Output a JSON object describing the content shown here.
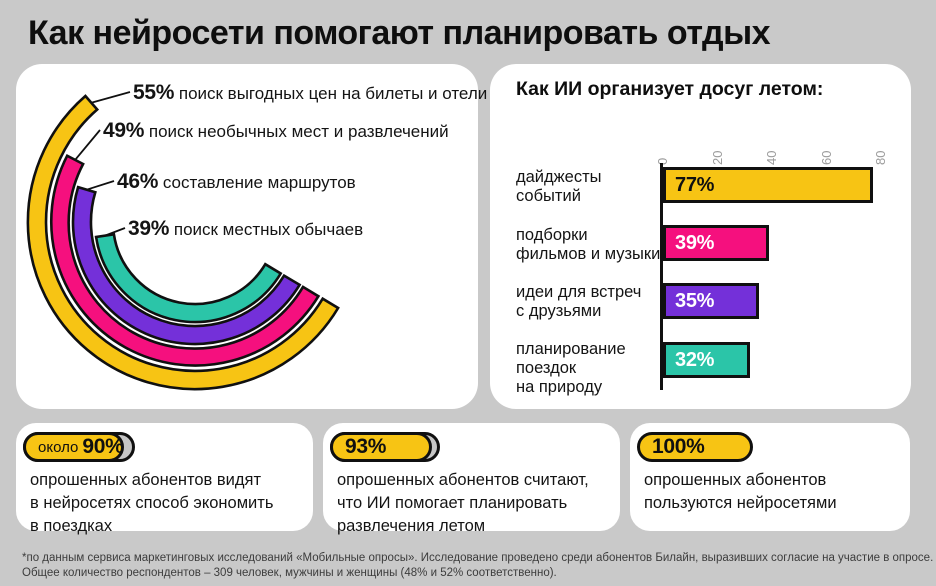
{
  "title": "Как нейросети помогают планировать отдых",
  "colors": {
    "yellow": "#F7C414",
    "pink": "#F5107E",
    "purple": "#7430D9",
    "teal": "#2BC5A8",
    "outline": "#101010",
    "pill_gray": "#C6C6C6",
    "background": "#C9C9C9",
    "tick_gray": "#9C9C9C"
  },
  "chart_data": [
    {
      "type": "radial_bar",
      "value_range": [
        0,
        100
      ],
      "items": [
        {
          "value": 55,
          "value_label": "55%",
          "label": "поиск выгодных цен на билеты и отели",
          "color": "yellow"
        },
        {
          "value": 49,
          "value_label": "49%",
          "label": "поиск необычных мест и развлечений",
          "color": "pink"
        },
        {
          "value": 46,
          "value_label": "46%",
          "label": "составление маршрутов",
          "color": "purple"
        },
        {
          "value": 39,
          "value_label": "39%",
          "label": "поиск местных обычаев",
          "color": "teal"
        }
      ]
    },
    {
      "type": "bar",
      "orientation": "horizontal",
      "title": "Как ИИ организует досуг летом:",
      "x_ticks": [
        0,
        20,
        40,
        60,
        80
      ],
      "xlim": [
        0,
        90
      ],
      "grid": false,
      "categories": [
        "дайджесты событий",
        "подборки фильмов и музыки",
        "идеи для встреч с друзьями",
        "планирование поездок на природу"
      ],
      "category_lines": [
        [
          "дайджесты",
          "событий"
        ],
        [
          "подборки",
          "фильмов и музыки"
        ],
        [
          "идеи для встреч",
          "с друзьями"
        ],
        [
          "планирование",
          "поездок",
          "на природу"
        ]
      ],
      "values": [
        77,
        39,
        35,
        32
      ],
      "value_labels": [
        "77%",
        "39%",
        "35%",
        "32%"
      ],
      "bar_colors": [
        "yellow",
        "pink",
        "purple",
        "teal"
      ],
      "value_label_colors": [
        "#101010",
        "#ffffff",
        "#ffffff",
        "#ffffff"
      ]
    }
  ],
  "stats": [
    {
      "pill_prefix": "около",
      "pill_value": "90%",
      "fill_pct": 90,
      "description": "опрошенных абонентов видят\nв нейросетях способ экономить\nв поездках"
    },
    {
      "pill_prefix": "",
      "pill_value": "93%",
      "fill_pct": 93,
      "description": "опрошенных абонентов считают,\nчто ИИ помогает планировать\nразвлечения летом"
    },
    {
      "pill_prefix": "",
      "pill_value": "100%",
      "fill_pct": 100,
      "description": "опрошенных абонентов\nпользуются нейросетями"
    }
  ],
  "footer": {
    "line1": "*по данным сервиса маркетинговых исследований «Мобильные опросы». Исследование проведено среди абонентов Билайн, выразивших согласие на участие в опросе.",
    "line2": "Общее количество респондентов – 309 человек, мужчины и женщины (48% и 52% соответственно)."
  }
}
